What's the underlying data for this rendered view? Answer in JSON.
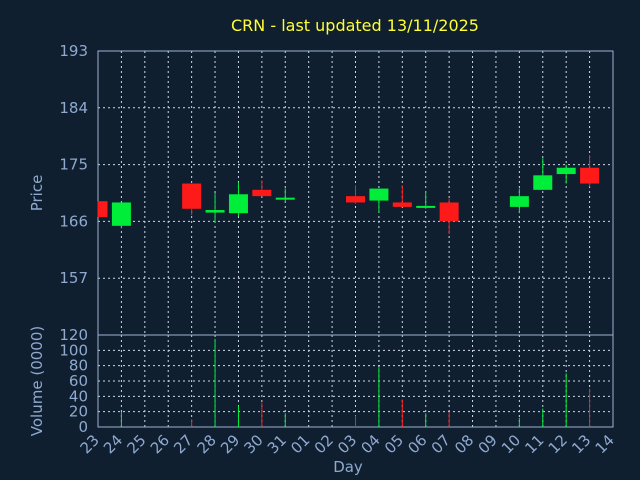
{
  "chart_data": {
    "type": "candlestick",
    "title": "CRN - last updated 13/11/2025",
    "xlabel": "Day",
    "price_panel": {
      "ylabel": "Price",
      "yticks": [
        157,
        166,
        175,
        184,
        193
      ],
      "ylim": [
        148,
        193
      ],
      "grid": true
    },
    "volume_panel": {
      "ylabel": "Volume (0000)",
      "yticks": [
        0,
        20,
        40,
        60,
        80,
        100,
        120
      ],
      "ylim": [
        0,
        120
      ],
      "grid": true
    },
    "x_tick_labels": [
      "23",
      "24",
      "25",
      "26",
      "27",
      "28",
      "29",
      "30",
      "31",
      "01",
      "02",
      "03",
      "04",
      "05",
      "06",
      "07",
      "08",
      "09",
      "10",
      "11",
      "12",
      "13",
      "14"
    ],
    "candles": [
      {
        "day": "23",
        "open": 169.2,
        "close": 166.7,
        "high": 169.2,
        "low": 166.7,
        "volume": 0
      },
      {
        "day": "24",
        "open": 165.3,
        "close": 169.0,
        "high": 169.0,
        "low": 164.9,
        "volume": 20
      },
      {
        "day": "27",
        "open": 172.0,
        "close": 168.0,
        "high": 172.0,
        "low": 167.0,
        "volume": 10
      },
      {
        "day": "28",
        "open": 167.4,
        "close": 167.8,
        "high": 170.5,
        "low": 165.8,
        "volume": 115
      },
      {
        "day": "29",
        "open": 167.3,
        "close": 170.3,
        "high": 172.2,
        "low": 166.8,
        "volume": 28
      },
      {
        "day": "30",
        "open": 171.0,
        "close": 170.0,
        "high": 172.5,
        "low": 170.0,
        "volume": 32
      },
      {
        "day": "31",
        "open": 169.3,
        "close": 169.6,
        "high": 171.2,
        "low": 169.0,
        "volume": 18
      },
      {
        "day": "03",
        "open": 170.0,
        "close": 169.0,
        "high": 171.7,
        "low": 168.8,
        "volume": 15
      },
      {
        "day": "04",
        "open": 169.3,
        "close": 171.2,
        "high": 171.2,
        "low": 167.4,
        "volume": 78
      },
      {
        "day": "05",
        "open": 169.0,
        "close": 168.3,
        "high": 171.7,
        "low": 168.3,
        "volume": 36
      },
      {
        "day": "06",
        "open": 168.0,
        "close": 168.3,
        "high": 170.8,
        "low": 168.0,
        "volume": 18
      },
      {
        "day": "07",
        "open": 169.0,
        "close": 166.0,
        "high": 169.6,
        "low": 164.0,
        "volume": 20
      },
      {
        "day": "10",
        "open": 168.3,
        "close": 170.0,
        "high": 171.2,
        "low": 167.3,
        "volume": 12
      },
      {
        "day": "11",
        "open": 171.0,
        "close": 173.3,
        "high": 176.0,
        "low": 171.0,
        "volume": 24
      },
      {
        "day": "12",
        "open": 173.5,
        "close": 174.5,
        "high": 175.0,
        "low": 172.0,
        "volume": 70
      },
      {
        "day": "13",
        "open": 174.5,
        "close": 172.0,
        "high": 176.5,
        "low": 171.5,
        "volume": 50
      }
    ],
    "colors": {
      "background": "#0f1f30",
      "up": "#00ee3a",
      "down": "#ff1a1a",
      "grid": "#d0d8e6",
      "frame": "#9fb3d0",
      "text": "#8fa9cf",
      "title": "#ffff33"
    }
  }
}
